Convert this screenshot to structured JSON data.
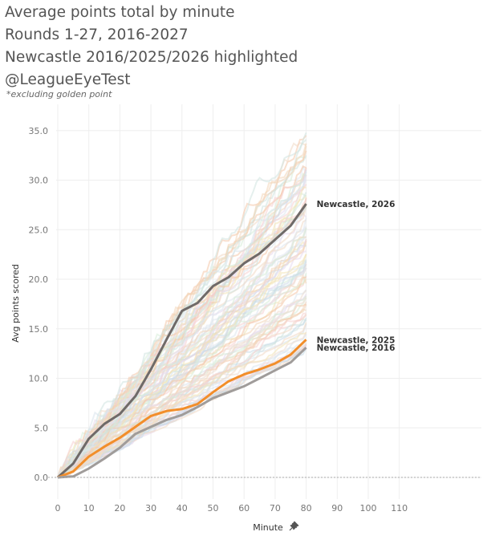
{
  "header": {
    "title_lines": [
      "Average points total by minute",
      "Rounds 1-27, 2016-2027",
      "Newcastle 2016/2025/2026 highlighted",
      "@LeagueEyeTest"
    ],
    "footnote": "*excluding golden point"
  },
  "chart_data": {
    "type": "line",
    "xlabel": "Minute",
    "ylabel": "Avg points scored",
    "xlim": [
      0,
      110
    ],
    "ylim": [
      0,
      35
    ],
    "x_ticks": [
      "0",
      "10",
      "20",
      "30",
      "40",
      "50",
      "60",
      "70",
      "80",
      "90",
      "100",
      "110"
    ],
    "y_ticks": [
      "0.0",
      "5.0",
      "10.0",
      "15.0",
      "20.0",
      "25.0",
      "30.0",
      "35.0"
    ],
    "grid": true,
    "background_series_count": 96,
    "background_end_range": [
      13,
      35
    ],
    "series": [
      {
        "name": "Newcastle, 2026",
        "color": "#6f6a68",
        "x": [
          0,
          5,
          10,
          15,
          20,
          25,
          30,
          35,
          40,
          45,
          50,
          55,
          60,
          65,
          70,
          75,
          80
        ],
        "values": [
          0,
          1.4,
          3.9,
          5.4,
          6.4,
          8.2,
          10.9,
          13.9,
          16.8,
          17.6,
          19.3,
          20.2,
          21.6,
          22.6,
          24.0,
          25.4,
          27.6
        ]
      },
      {
        "name": "Newcastle, 2025",
        "color": "#f28e2b",
        "x": [
          0,
          5,
          10,
          15,
          20,
          25,
          30,
          35,
          40,
          45,
          50,
          55,
          60,
          65,
          70,
          75,
          80
        ],
        "values": [
          0,
          0.6,
          2.1,
          3.1,
          4.0,
          5.1,
          6.2,
          6.7,
          6.9,
          7.4,
          8.6,
          9.7,
          10.4,
          10.9,
          11.5,
          12.4,
          13.9
        ]
      },
      {
        "name": "Newcastle, 2016",
        "color": "#a09c9a",
        "x": [
          0,
          5,
          10,
          15,
          20,
          25,
          30,
          35,
          40,
          45,
          50,
          55,
          60,
          65,
          70,
          75,
          80
        ],
        "values": [
          0,
          0.1,
          0.9,
          1.9,
          3.0,
          4.4,
          5.1,
          5.8,
          6.3,
          7.1,
          8.0,
          8.6,
          9.2,
          10.0,
          10.8,
          11.6,
          13.1
        ]
      }
    ]
  }
}
